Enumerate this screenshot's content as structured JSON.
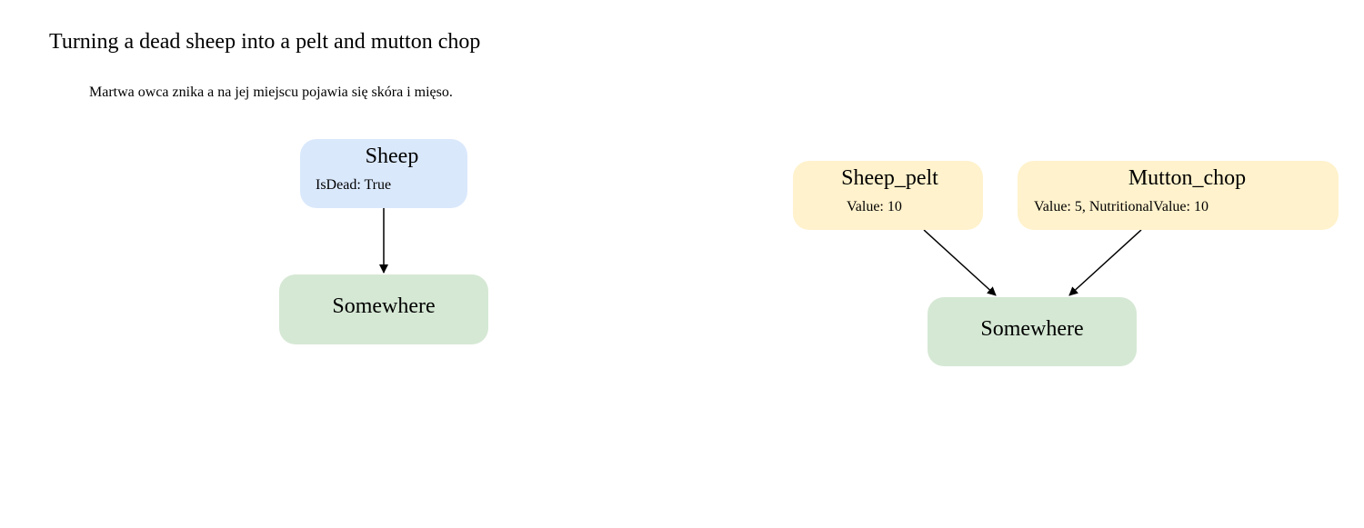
{
  "diagram": {
    "title": "Turning a dead sheep into a pelt and mutton chop",
    "subtitle": "Martwa owca znika a na jej miejscu pojawia się skóra i mięso.",
    "nodes": {
      "sheep": {
        "name": "Sheep",
        "attrs": "IsDead: True",
        "color": "#dae8fc"
      },
      "somewhere_left": {
        "name": "Somewhere",
        "color": "#d5e8d4"
      },
      "sheep_pelt": {
        "name": "Sheep_pelt",
        "attrs": "Value: 10",
        "color": "#fff2cc"
      },
      "mutton_chop": {
        "name": "Mutton_chop",
        "attrs": "Value: 5, NutritionalValue: 10",
        "color": "#fff2cc"
      },
      "somewhere_right": {
        "name": "Somewhere",
        "color": "#d5e8d4"
      }
    },
    "edges": [
      {
        "from": "sheep",
        "to": "somewhere_left"
      },
      {
        "from": "sheep_pelt",
        "to": "somewhere_right"
      },
      {
        "from": "mutton_chop",
        "to": "somewhere_right"
      }
    ]
  }
}
